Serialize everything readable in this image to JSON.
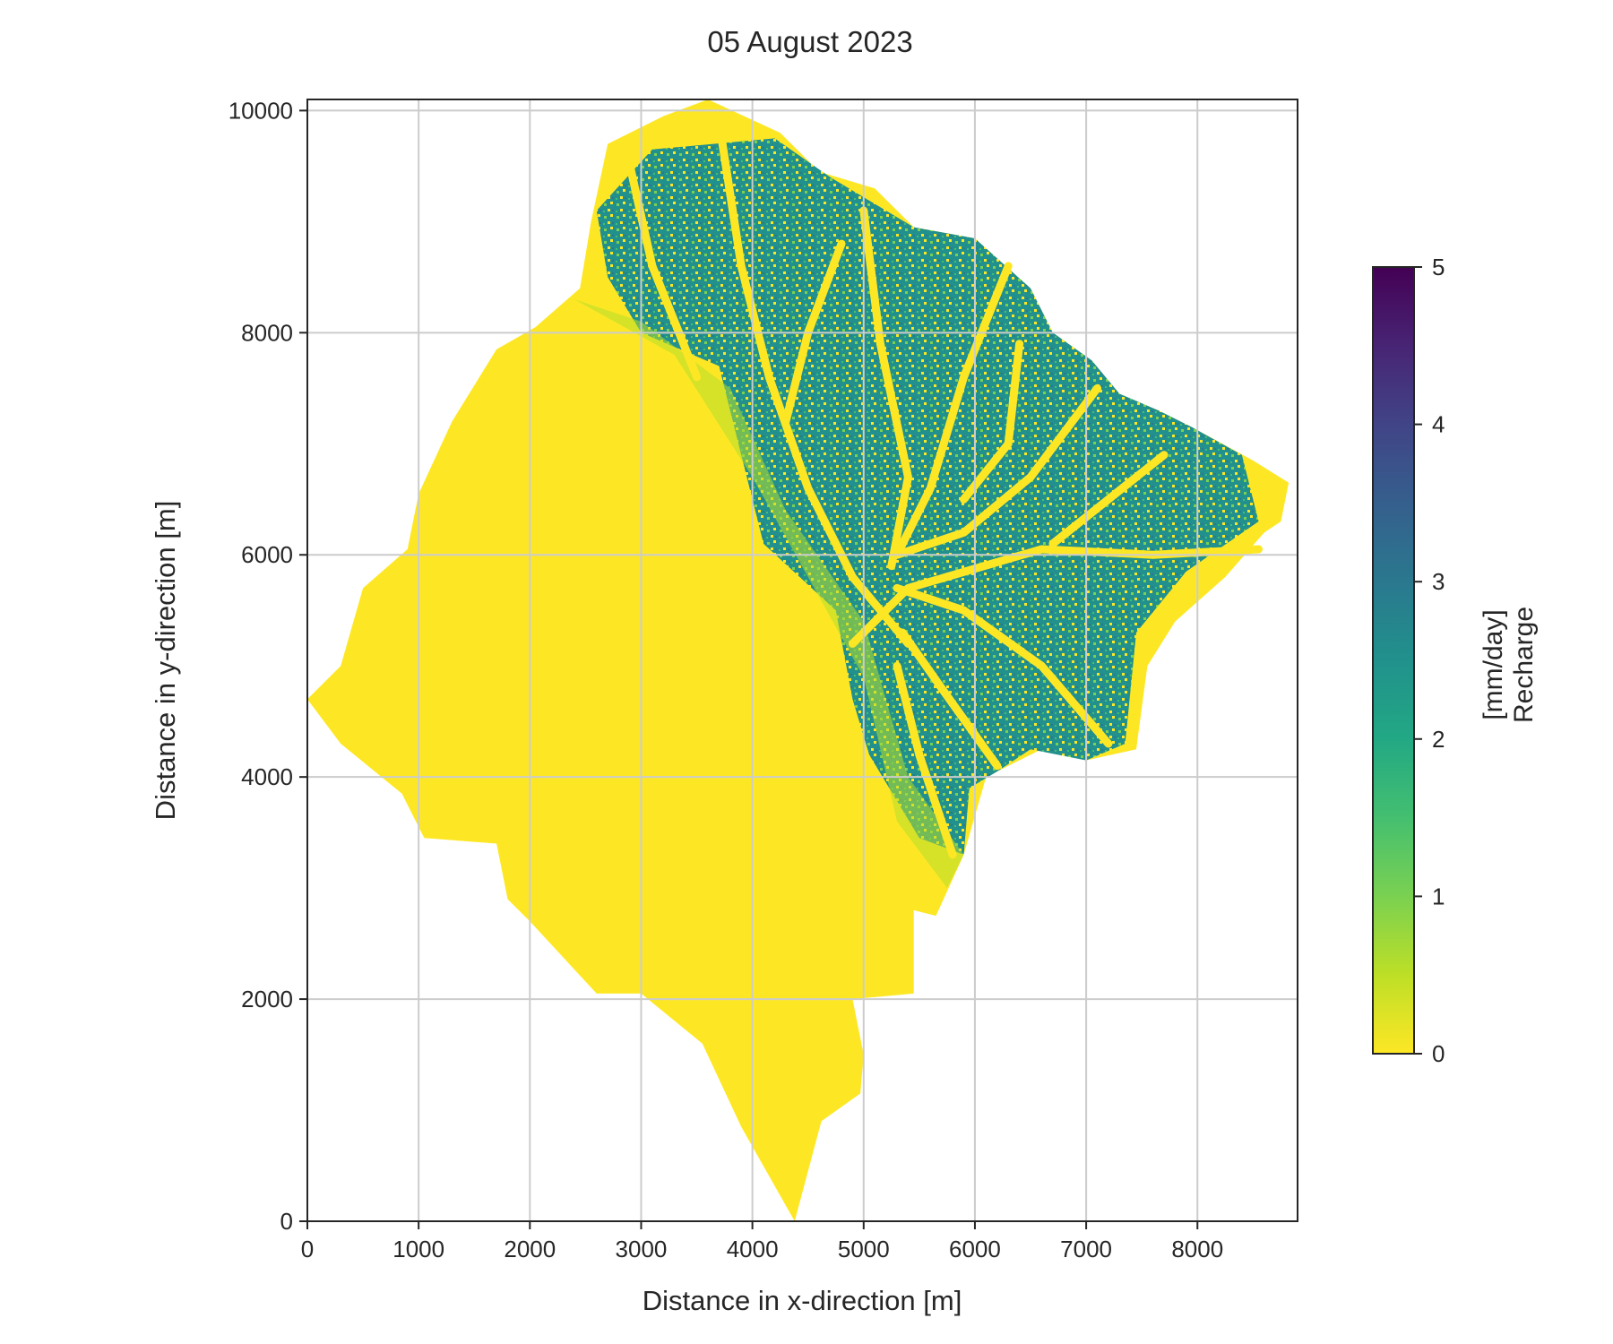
{
  "chart_data": {
    "type": "heatmap",
    "title": "05 August 2023",
    "xlabel": "Distance in x-direction [m]",
    "ylabel": "Distance in y-direction [m]",
    "xlim": [
      0,
      8900
    ],
    "ylim": [
      0,
      10100
    ],
    "xticks": [
      0,
      1000,
      2000,
      3000,
      4000,
      5000,
      6000,
      7000,
      8000
    ],
    "yticks": [
      0,
      2000,
      4000,
      6000,
      8000,
      10000
    ],
    "grid": true,
    "colormap": "viridis_r",
    "colorbar": {
      "label_line1": "Recharge",
      "label_line2": "[mm/day]",
      "range": [
        0,
        5
      ],
      "ticks": [
        0,
        1,
        2,
        3,
        4,
        5
      ]
    },
    "catchment_outline": [
      [
        4380,
        0
      ],
      [
        4620,
        900
      ],
      [
        4970,
        1150
      ],
      [
        5000,
        1500
      ],
      [
        4900,
        2000
      ],
      [
        5450,
        2050
      ],
      [
        5450,
        2800
      ],
      [
        5650,
        2750
      ],
      [
        5900,
        3300
      ],
      [
        6100,
        4000
      ],
      [
        6300,
        4100
      ],
      [
        6600,
        4250
      ],
      [
        7000,
        4150
      ],
      [
        7450,
        4250
      ],
      [
        7550,
        5000
      ],
      [
        7800,
        5400
      ],
      [
        8250,
        5800
      ],
      [
        8600,
        6200
      ],
      [
        8750,
        6300
      ],
      [
        8820,
        6650
      ],
      [
        8500,
        6850
      ],
      [
        7950,
        7150
      ],
      [
        7650,
        7300
      ],
      [
        7300,
        7450
      ],
      [
        7050,
        7750
      ],
      [
        6700,
        8000
      ],
      [
        6500,
        8400
      ],
      [
        6000,
        8850
      ],
      [
        5450,
        8950
      ],
      [
        5100,
        9300
      ],
      [
        4600,
        9450
      ],
      [
        4250,
        9800
      ],
      [
        3600,
        10100
      ],
      [
        3200,
        9950
      ],
      [
        2700,
        9700
      ],
      [
        2550,
        9000
      ],
      [
        2450,
        8400
      ],
      [
        2050,
        8050
      ],
      [
        1700,
        7850
      ],
      [
        1300,
        7200
      ],
      [
        1000,
        6550
      ],
      [
        900,
        6050
      ],
      [
        500,
        5700
      ],
      [
        300,
        5000
      ],
      [
        0,
        4700
      ],
      [
        300,
        4300
      ],
      [
        850,
        3850
      ],
      [
        1050,
        3450
      ],
      [
        1700,
        3400
      ],
      [
        1800,
        2900
      ],
      [
        2000,
        2700
      ],
      [
        2600,
        2050
      ],
      [
        3000,
        2050
      ],
      [
        3550,
        1600
      ],
      [
        3900,
        850
      ]
    ],
    "recharge_zones": [
      {
        "description": "main recharge zone in northeast",
        "value_mm_day": 2.6,
        "polygon": [
          [
            3100,
            9650
          ],
          [
            4200,
            9750
          ],
          [
            4700,
            9400
          ],
          [
            5450,
            8950
          ],
          [
            6000,
            8850
          ],
          [
            6500,
            8400
          ],
          [
            6700,
            8000
          ],
          [
            7050,
            7750
          ],
          [
            7300,
            7450
          ],
          [
            7650,
            7300
          ],
          [
            7950,
            7150
          ],
          [
            8400,
            6900
          ],
          [
            8550,
            6300
          ],
          [
            7900,
            5850
          ],
          [
            7450,
            5300
          ],
          [
            7350,
            4300
          ],
          [
            7000,
            4150
          ],
          [
            6500,
            4250
          ],
          [
            6200,
            4050
          ],
          [
            5950,
            3900
          ],
          [
            5900,
            3300
          ],
          [
            5500,
            3450
          ],
          [
            5050,
            4200
          ],
          [
            4900,
            4700
          ],
          [
            4750,
            5500
          ],
          [
            4100,
            6100
          ],
          [
            3900,
            6900
          ],
          [
            3700,
            7700
          ],
          [
            3000,
            8000
          ],
          [
            2700,
            8500
          ],
          [
            2600,
            9100
          ]
        ]
      },
      {
        "description": "transitional low recharge band",
        "value_mm_day": 0.6,
        "polygon": [
          [
            2400,
            8300
          ],
          [
            3300,
            7800
          ],
          [
            4000,
            6700
          ],
          [
            4500,
            5800
          ],
          [
            5000,
            4900
          ],
          [
            5300,
            3600
          ],
          [
            5750,
            3000
          ],
          [
            5900,
            3300
          ],
          [
            5400,
            4000
          ],
          [
            5000,
            5400
          ],
          [
            4300,
            6400
          ],
          [
            3800,
            7500
          ],
          [
            3000,
            8100
          ]
        ]
      }
    ],
    "channels": [
      {
        "value_mm_day": 0,
        "points": [
          [
            3700,
            9900
          ],
          [
            3900,
            8600
          ],
          [
            4150,
            7600
          ],
          [
            4500,
            6600
          ],
          [
            4900,
            5800
          ],
          [
            5400,
            5200
          ]
        ]
      },
      {
        "value_mm_day": 0,
        "points": [
          [
            5000,
            9100
          ],
          [
            5150,
            7900
          ],
          [
            5400,
            6700
          ],
          [
            5250,
            5900
          ]
        ]
      },
      {
        "value_mm_day": 0,
        "points": [
          [
            6300,
            8600
          ],
          [
            5900,
            7600
          ],
          [
            5600,
            6600
          ],
          [
            5300,
            6000
          ]
        ]
      },
      {
        "value_mm_day": 0,
        "points": [
          [
            7100,
            7500
          ],
          [
            6500,
            6700
          ],
          [
            5900,
            6200
          ],
          [
            5300,
            6000
          ]
        ]
      },
      {
        "value_mm_day": 0,
        "points": [
          [
            8550,
            6050
          ],
          [
            7600,
            6000
          ],
          [
            6600,
            6050
          ],
          [
            5400,
            5700
          ],
          [
            4900,
            5200
          ]
        ]
      },
      {
        "value_mm_day": 0,
        "points": [
          [
            7200,
            4300
          ],
          [
            6600,
            5000
          ],
          [
            5900,
            5500
          ],
          [
            5300,
            5700
          ]
        ]
      },
      {
        "value_mm_day": 0,
        "points": [
          [
            6200,
            4100
          ],
          [
            5700,
            4800
          ],
          [
            5350,
            5300
          ]
        ]
      },
      {
        "value_mm_day": 0,
        "points": [
          [
            5800,
            3300
          ],
          [
            5500,
            4200
          ],
          [
            5300,
            5000
          ]
        ]
      },
      {
        "value_mm_day": 0,
        "points": [
          [
            4800,
            8800
          ],
          [
            4500,
            8000
          ],
          [
            4300,
            7200
          ]
        ]
      },
      {
        "value_mm_day": 0,
        "points": [
          [
            6400,
            7900
          ],
          [
            6300,
            7000
          ],
          [
            5900,
            6500
          ]
        ]
      },
      {
        "value_mm_day": 0,
        "points": [
          [
            7700,
            6900
          ],
          [
            7200,
            6500
          ],
          [
            6700,
            6100
          ]
        ]
      },
      {
        "value_mm_day": 0,
        "points": [
          [
            2900,
            9500
          ],
          [
            3100,
            8600
          ],
          [
            3500,
            7600
          ]
        ]
      }
    ]
  }
}
